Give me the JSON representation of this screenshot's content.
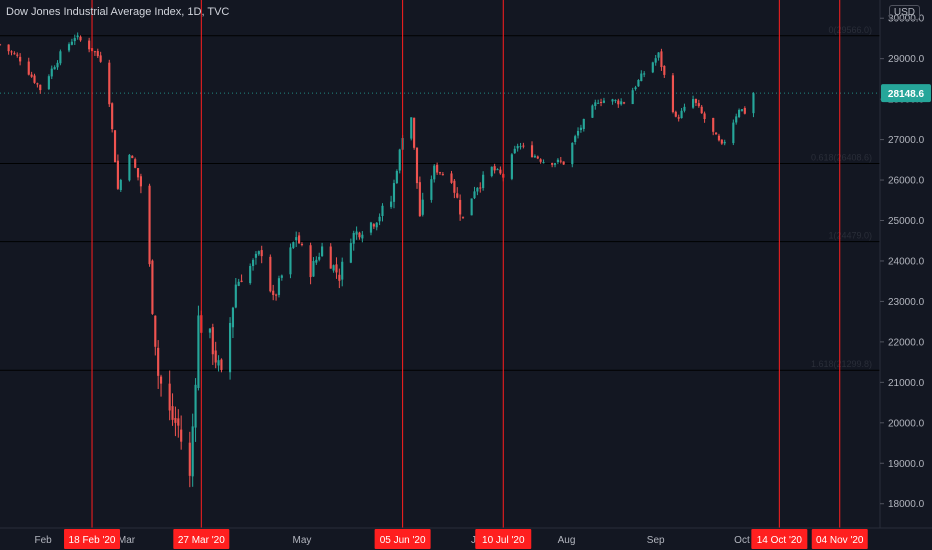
{
  "header": {
    "title": "Dow Jones Industrial Average Index, 1D, TVC",
    "currency": "USD"
  },
  "colors": {
    "background": "#131722",
    "up": "#26a69a",
    "down": "#ef5350",
    "event_line": "#ff1f1f",
    "last_price": "#26a69a"
  },
  "chart_data": {
    "type": "candlestick",
    "ylim": [
      17400,
      30450
    ],
    "y_ticks": [
      18000,
      19000,
      20000,
      21000,
      22000,
      23000,
      24000,
      25000,
      26000,
      27000,
      28000,
      29000,
      30000
    ],
    "y_tick_labels": [
      "18000.0",
      "19000.0",
      "20000.0",
      "21000.0",
      "22000.0",
      "23000.0",
      "24000.0",
      "25000.0",
      "26000.0",
      "27000.0",
      "28000.0",
      "29000.0",
      "30000.0"
    ],
    "x_range": [
      "2020-01-17",
      "2020-11-18"
    ],
    "month_labels": [
      {
        "date": "2020-02-01",
        "label": "Feb"
      },
      {
        "date": "2020-03-01",
        "label": "Mar"
      },
      {
        "date": "2020-05-01",
        "label": "May"
      },
      {
        "date": "2020-07-01",
        "label": "Jul"
      },
      {
        "date": "2020-08-01",
        "label": "Aug"
      },
      {
        "date": "2020-09-01",
        "label": "Sep"
      },
      {
        "date": "2020-10-01",
        "label": "Oct"
      }
    ],
    "last_price": 28148.6,
    "last_price_label": "28148.6",
    "fib_levels": [
      {
        "value": 29566,
        "label": "0(29566.0)"
      },
      {
        "value": 26408.6,
        "label": "0.618(26408.6)"
      },
      {
        "value": 24479,
        "label": "1(24479.0)"
      },
      {
        "value": 21299.8,
        "label": "1.618(21299.8)"
      }
    ],
    "event_lines": [
      {
        "date": "2020-02-18",
        "label": "18 Feb '20"
      },
      {
        "date": "2020-03-27",
        "label": "27 Mar '20"
      },
      {
        "date": "2020-06-05",
        "label": "05 Jun '20"
      },
      {
        "date": "2020-07-10",
        "label": "10 Jul '20"
      },
      {
        "date": "2020-10-14",
        "label": "14 Oct '20"
      },
      {
        "date": "2020-11-04",
        "label": "04 Nov '20"
      }
    ],
    "price_path": [
      [
        "2020-01-17",
        29350
      ],
      [
        "2020-01-24",
        28990
      ],
      [
        "2020-01-31",
        28250
      ],
      [
        "2020-02-07",
        29100
      ],
      [
        "2020-02-12",
        29550
      ],
      [
        "2020-02-18",
        29230
      ],
      [
        "2020-02-21",
        28990
      ],
      [
        "2020-02-24",
        27960
      ],
      [
        "2020-02-27",
        25770
      ],
      [
        "2020-03-02",
        26700
      ],
      [
        "2020-03-06",
        25860
      ],
      [
        "2020-03-09",
        23850
      ],
      [
        "2020-03-12",
        21200
      ],
      [
        "2020-03-16",
        20200
      ],
      [
        "2020-03-19",
        19900
      ],
      [
        "2020-03-23",
        18590
      ],
      [
        "2020-03-26",
        22550
      ],
      [
        "2020-03-31",
        21900
      ],
      [
        "2020-04-03",
        21050
      ],
      [
        "2020-04-08",
        23430
      ],
      [
        "2020-04-14",
        23950
      ],
      [
        "2020-04-17",
        24240
      ],
      [
        "2020-04-21",
        23020
      ],
      [
        "2020-04-29",
        24630
      ],
      [
        "2020-05-04",
        23750
      ],
      [
        "2020-05-08",
        24330
      ],
      [
        "2020-05-14",
        23620
      ],
      [
        "2020-05-18",
        24600
      ],
      [
        "2020-05-26",
        24990
      ],
      [
        "2020-06-01",
        25480
      ],
      [
        "2020-06-05",
        27110
      ],
      [
        "2020-06-08",
        27570
      ],
      [
        "2020-06-11",
        25130
      ],
      [
        "2020-06-16",
        26290
      ],
      [
        "2020-06-22",
        26020
      ],
      [
        "2020-06-26",
        25020
      ],
      [
        "2020-06-30",
        25810
      ],
      [
        "2020-07-06",
        26290
      ],
      [
        "2020-07-10",
        26080
      ],
      [
        "2020-07-15",
        26870
      ],
      [
        "2020-07-24",
        26470
      ],
      [
        "2020-07-31",
        26430
      ],
      [
        "2020-08-05",
        27200
      ],
      [
        "2020-08-12",
        27980
      ],
      [
        "2020-08-21",
        27930
      ],
      [
        "2020-08-28",
        28650
      ],
      [
        "2020-09-02",
        29100
      ],
      [
        "2020-09-08",
        27500
      ],
      [
        "2020-09-14",
        27990
      ],
      [
        "2020-09-21",
        27150
      ],
      [
        "2020-09-24",
        26820
      ],
      [
        "2020-09-30",
        27780
      ],
      [
        "2020-10-02",
        27680
      ],
      [
        "2020-10-05",
        28148.6
      ]
    ]
  }
}
